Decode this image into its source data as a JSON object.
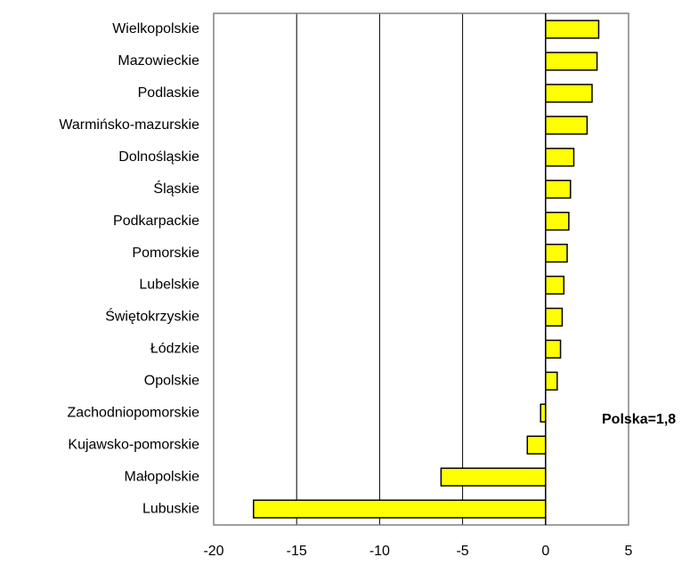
{
  "chart_data": {
    "type": "bar",
    "orientation": "horizontal",
    "categories": [
      "Wielkopolskie",
      "Mazowieckie",
      "Podlaskie",
      "Warmińsko-mazurskie",
      "Dolnośląskie",
      "Śląskie",
      "Podkarpackie",
      "Pomorskie",
      "Lubelskie",
      "Świętokrzyskie",
      "Łódzkie",
      "Opolskie",
      "Zachodniopomorskie",
      "Kujawsko-pomorskie",
      "Małopolskie",
      "Lubuskie"
    ],
    "values": [
      3.2,
      3.1,
      2.8,
      2.5,
      1.7,
      1.5,
      1.4,
      1.3,
      1.1,
      1.0,
      0.9,
      0.7,
      -0.3,
      -1.1,
      -6.3,
      -17.6
    ],
    "title": "",
    "xlabel": "",
    "ylabel": "",
    "xlim": [
      -20,
      5
    ],
    "xticks": [
      -20,
      -15,
      -10,
      -5,
      0,
      5
    ],
    "grid": "vertical",
    "bar_color": "#FFFF00",
    "bar_edge_color": "#000000",
    "annotation": "Polska=1,8"
  }
}
